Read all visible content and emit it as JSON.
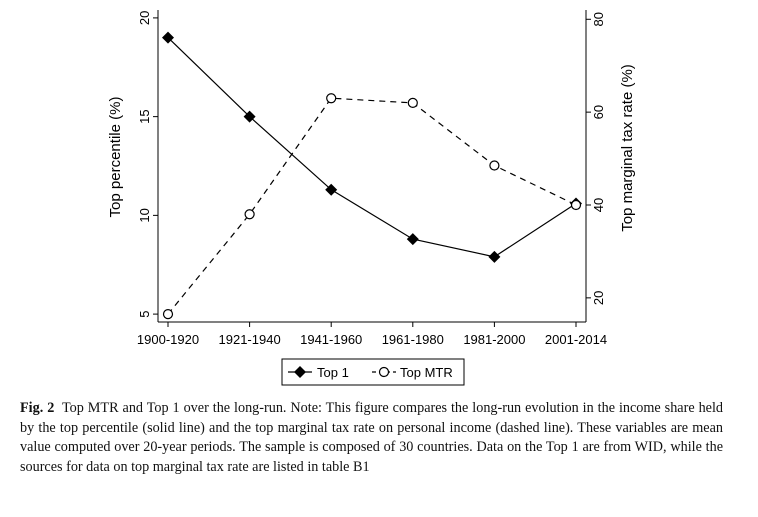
{
  "chart_data": {
    "type": "line",
    "categories": [
      "1900-1920",
      "1921-1940",
      "1941-1960",
      "1961-1980",
      "1981-2000",
      "2001-2014"
    ],
    "series": [
      {
        "name": "Top 1",
        "axis": "left",
        "style": "solid",
        "marker": "filled-diamond",
        "values": [
          19.0,
          15.0,
          11.3,
          8.8,
          7.9,
          10.6
        ]
      },
      {
        "name": "Top MTR",
        "axis": "right",
        "style": "dashed",
        "marker": "hollow-circle",
        "values": [
          16.5,
          38.0,
          63.0,
          62.0,
          48.5,
          40.0
        ]
      }
    ],
    "y_left": {
      "label": "Top percentile (%)",
      "ticks": [
        5,
        10,
        15,
        20
      ],
      "lim": [
        4.6,
        20.4
      ]
    },
    "y_right": {
      "label": "Top marginal tax rate (%)",
      "ticks": [
        20,
        40,
        60,
        80
      ],
      "lim": [
        14.8,
        82.0
      ]
    },
    "legend_position": "bottom-center",
    "grid": false,
    "colors": {
      "line": "#000000",
      "background": "#ffffff"
    }
  },
  "caption": {
    "label": "Fig. 2",
    "text": "Top MTR and Top 1 over the long-run. Note: This figure compares the long-run evolution in the income share held by the top percentile (solid line) and the top marginal tax rate on personal income (dashed line). These variables are mean value computed over 20-year periods. The sample is composed of 30 countries. Data on the Top 1 are from WID, while the sources for data on top marginal tax rate are listed in table B1"
  }
}
